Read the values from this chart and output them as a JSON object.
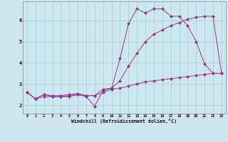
{
  "xlabel": "Windchill (Refroidissement éolien,°C)",
  "background_color": "#cce8ee",
  "grid_color": "#aacccc",
  "line_color": "#993399",
  "xlim": [
    -0.5,
    23.5
  ],
  "ylim": [
    1.6,
    6.9
  ],
  "yticks": [
    2,
    3,
    4,
    5,
    6
  ],
  "xticks": [
    0,
    1,
    2,
    3,
    4,
    5,
    6,
    7,
    8,
    9,
    10,
    11,
    12,
    13,
    14,
    15,
    16,
    17,
    18,
    19,
    20,
    21,
    22,
    23
  ],
  "line1_x": [
    0,
    1,
    2,
    3,
    4,
    5,
    6,
    7,
    8,
    9,
    10,
    11,
    12,
    13,
    14,
    15,
    16,
    17,
    18,
    19,
    20,
    21,
    22,
    23
  ],
  "line1_y": [
    2.6,
    2.3,
    2.5,
    2.4,
    2.4,
    2.4,
    2.5,
    2.4,
    1.95,
    2.7,
    2.8,
    4.2,
    5.85,
    6.55,
    6.35,
    6.55,
    6.55,
    6.2,
    6.2,
    5.75,
    5.0,
    3.95,
    3.5,
    3.5
  ],
  "line2_x": [
    0,
    1,
    2,
    3,
    4,
    5,
    6,
    7,
    8,
    9,
    10,
    11,
    12,
    13,
    14,
    15,
    16,
    17,
    18,
    19,
    20,
    21,
    22,
    23
  ],
  "line2_y": [
    2.6,
    2.3,
    2.5,
    2.45,
    2.45,
    2.5,
    2.55,
    2.45,
    2.45,
    2.75,
    2.8,
    3.15,
    3.85,
    4.45,
    5.0,
    5.35,
    5.55,
    5.75,
    5.9,
    6.05,
    6.15,
    6.2,
    6.2,
    3.5
  ],
  "line3_x": [
    0,
    1,
    2,
    3,
    4,
    5,
    6,
    7,
    8,
    9,
    10,
    11,
    12,
    13,
    14,
    15,
    16,
    17,
    18,
    19,
    20,
    21,
    22,
    23
  ],
  "line3_y": [
    2.6,
    2.3,
    2.4,
    2.4,
    2.4,
    2.45,
    2.5,
    2.45,
    2.45,
    2.6,
    2.75,
    2.8,
    2.9,
    3.0,
    3.1,
    3.15,
    3.2,
    3.25,
    3.3,
    3.35,
    3.4,
    3.45,
    3.5,
    3.5
  ]
}
